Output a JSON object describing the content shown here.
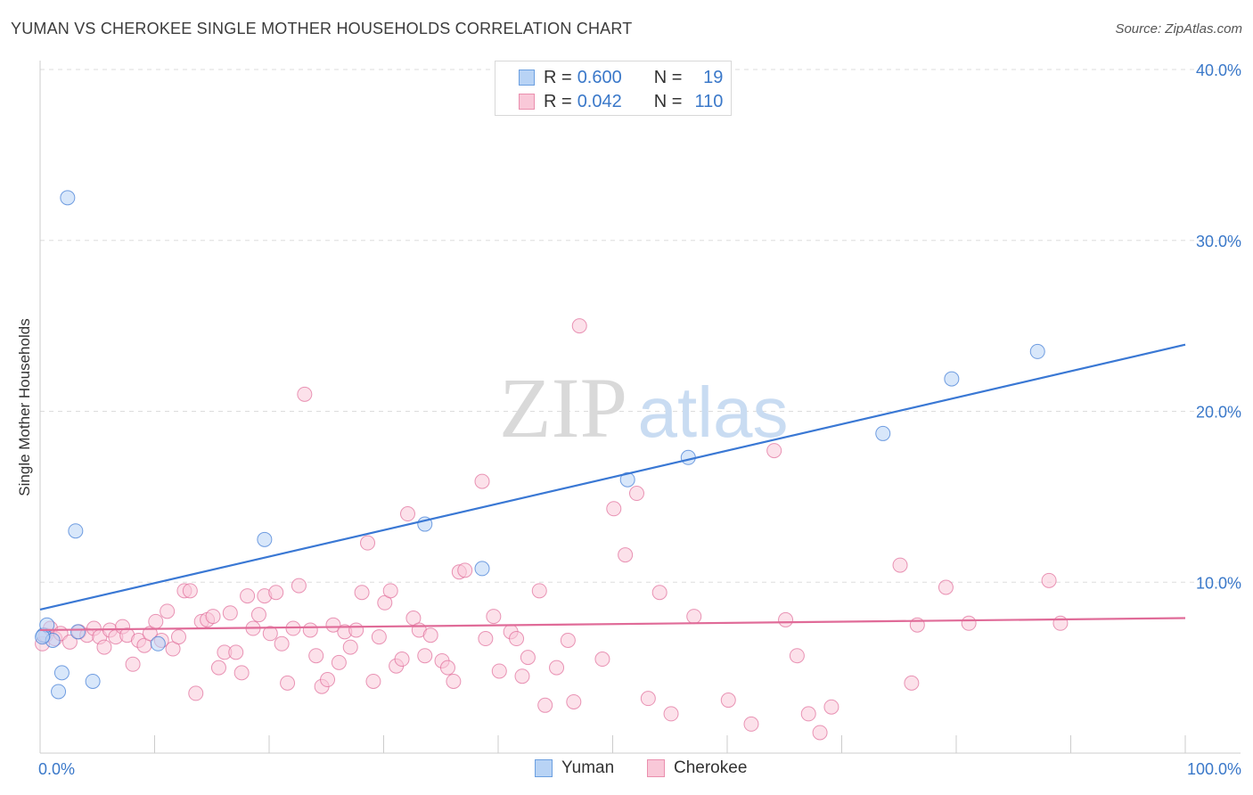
{
  "title": "YUMAN VS CHEROKEE SINGLE MOTHER HOUSEHOLDS CORRELATION CHART",
  "source": "Source: ZipAtlas.com",
  "watermark": {
    "zip": "ZIP",
    "atlas": "atlas"
  },
  "legend_top": [
    {
      "r_label": "R =",
      "r_value": "0.600",
      "n_label": "N =",
      "n_value": "19",
      "fill": "#b8d3f5",
      "stroke": "#6b9fe0"
    },
    {
      "r_label": "R =",
      "r_value": "0.042",
      "n_label": "N =",
      "n_value": "110",
      "fill": "#f9c8d8",
      "stroke": "#ea8fae"
    }
  ],
  "legend_bottom": [
    {
      "label": "Yuman",
      "fill": "#b8d3f5",
      "stroke": "#6b9fe0"
    },
    {
      "label": "Cherokee",
      "fill": "#f9c8d8",
      "stroke": "#ea8fae"
    }
  ],
  "chart_data": {
    "type": "scatter",
    "title": "YUMAN VS CHEROKEE SINGLE MOTHER HOUSEHOLDS CORRELATION CHART",
    "xlabel": "",
    "ylabel": "Single Mother Households",
    "xlim": [
      0,
      100
    ],
    "ylim": [
      0,
      40
    ],
    "x_tick_labels": [
      "0.0%",
      "100.0%"
    ],
    "y_ticks": [
      10,
      20,
      30,
      40
    ],
    "y_tick_labels": [
      "10.0%",
      "20.0%",
      "30.0%",
      "40.0%"
    ],
    "grid": "horizontal dashed",
    "legend": "top-center and bottom",
    "series": [
      {
        "name": "Yuman",
        "color": "#3a78d4",
        "fill": "#b8d3f5",
        "trend": {
          "x0": 0,
          "y0": 8.4,
          "x1": 100,
          "y1": 23.9
        },
        "points": [
          [
            0.3,
            6.9
          ],
          [
            0.6,
            7.5
          ],
          [
            1.1,
            6.6
          ],
          [
            1.6,
            3.6
          ],
          [
            1.9,
            4.7
          ],
          [
            2.4,
            32.5
          ],
          [
            3.1,
            13.0
          ],
          [
            3.3,
            7.1
          ],
          [
            4.6,
            4.2
          ],
          [
            10.3,
            6.4
          ],
          [
            19.6,
            12.5
          ],
          [
            33.6,
            13.4
          ],
          [
            38.6,
            10.8
          ],
          [
            51.3,
            16.0
          ],
          [
            56.6,
            17.3
          ],
          [
            73.6,
            18.7
          ],
          [
            79.6,
            21.9
          ],
          [
            87.1,
            23.5
          ],
          [
            0.2,
            6.8
          ]
        ]
      },
      {
        "name": "Cherokee",
        "color": "#e06b98",
        "fill": "#f9c8d8",
        "trend": {
          "x0": 0,
          "y0": 7.2,
          "x1": 100,
          "y1": 7.9
        },
        "points": [
          [
            0.2,
            6.4
          ],
          [
            0.5,
            6.9
          ],
          [
            0.9,
            7.3
          ],
          [
            1.3,
            6.7
          ],
          [
            1.8,
            7.0
          ],
          [
            2.6,
            6.5
          ],
          [
            3.4,
            7.1
          ],
          [
            4.1,
            6.9
          ],
          [
            4.7,
            7.3
          ],
          [
            5.2,
            6.8
          ],
          [
            5.6,
            6.2
          ],
          [
            6.1,
            7.2
          ],
          [
            6.6,
            6.8
          ],
          [
            7.2,
            7.4
          ],
          [
            7.6,
            6.9
          ],
          [
            8.1,
            5.2
          ],
          [
            8.6,
            6.6
          ],
          [
            9.1,
            6.3
          ],
          [
            9.6,
            7.0
          ],
          [
            10.1,
            7.7
          ],
          [
            10.6,
            6.6
          ],
          [
            11.1,
            8.3
          ],
          [
            11.6,
            6.1
          ],
          [
            12.1,
            6.8
          ],
          [
            12.6,
            9.5
          ],
          [
            13.1,
            9.5
          ],
          [
            13.6,
            3.5
          ],
          [
            14.1,
            7.7
          ],
          [
            14.6,
            7.8
          ],
          [
            15.1,
            8.0
          ],
          [
            15.6,
            5.0
          ],
          [
            16.1,
            5.9
          ],
          [
            16.6,
            8.2
          ],
          [
            17.1,
            5.9
          ],
          [
            17.6,
            4.7
          ],
          [
            18.1,
            9.2
          ],
          [
            18.6,
            7.3
          ],
          [
            19.1,
            8.1
          ],
          [
            19.6,
            9.2
          ],
          [
            20.1,
            7.0
          ],
          [
            20.6,
            9.4
          ],
          [
            21.1,
            6.4
          ],
          [
            21.6,
            4.1
          ],
          [
            22.1,
            7.3
          ],
          [
            22.6,
            9.8
          ],
          [
            23.1,
            21.0
          ],
          [
            23.6,
            7.2
          ],
          [
            24.1,
            5.7
          ],
          [
            24.6,
            3.9
          ],
          [
            25.1,
            4.3
          ],
          [
            25.6,
            7.5
          ],
          [
            26.1,
            5.3
          ],
          [
            26.6,
            7.1
          ],
          [
            27.1,
            6.2
          ],
          [
            27.6,
            7.2
          ],
          [
            28.1,
            9.4
          ],
          [
            28.6,
            12.3
          ],
          [
            29.1,
            4.2
          ],
          [
            29.6,
            6.8
          ],
          [
            30.1,
            8.8
          ],
          [
            30.6,
            9.5
          ],
          [
            31.1,
            5.1
          ],
          [
            31.6,
            5.5
          ],
          [
            32.1,
            14.0
          ],
          [
            32.6,
            7.9
          ],
          [
            33.1,
            7.2
          ],
          [
            33.6,
            5.7
          ],
          [
            34.1,
            6.9
          ],
          [
            35.1,
            5.4
          ],
          [
            35.6,
            5.0
          ],
          [
            36.1,
            4.2
          ],
          [
            36.6,
            10.6
          ],
          [
            37.1,
            10.7
          ],
          [
            38.6,
            15.9
          ],
          [
            38.9,
            6.7
          ],
          [
            39.6,
            8.0
          ],
          [
            40.1,
            4.8
          ],
          [
            41.1,
            7.1
          ],
          [
            41.6,
            6.7
          ],
          [
            42.1,
            4.5
          ],
          [
            42.6,
            5.6
          ],
          [
            43.6,
            9.5
          ],
          [
            44.1,
            2.8
          ],
          [
            45.1,
            5.0
          ],
          [
            46.1,
            6.6
          ],
          [
            46.6,
            3.0
          ],
          [
            47.1,
            25.0
          ],
          [
            49.1,
            5.5
          ],
          [
            50.1,
            14.3
          ],
          [
            51.1,
            11.6
          ],
          [
            52.1,
            15.2
          ],
          [
            53.1,
            3.2
          ],
          [
            54.1,
            9.4
          ],
          [
            55.1,
            2.3
          ],
          [
            57.1,
            8.0
          ],
          [
            60.1,
            3.1
          ],
          [
            62.1,
            1.7
          ],
          [
            64.1,
            17.7
          ],
          [
            65.1,
            7.8
          ],
          [
            66.1,
            5.7
          ],
          [
            67.1,
            2.3
          ],
          [
            68.1,
            1.2
          ],
          [
            69.1,
            2.7
          ],
          [
            75.1,
            11.0
          ],
          [
            76.1,
            4.1
          ],
          [
            76.6,
            7.5
          ],
          [
            79.1,
            9.7
          ],
          [
            81.1,
            7.6
          ],
          [
            88.1,
            10.1
          ],
          [
            89.1,
            7.6
          ]
        ]
      }
    ]
  }
}
